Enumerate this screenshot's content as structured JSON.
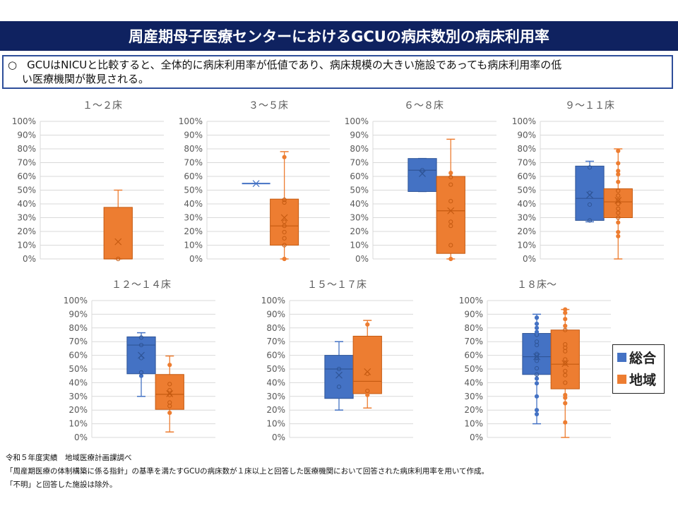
{
  "header": {
    "title": "周産期母子医療センターにおけるGCUの病床数別の病床利用率"
  },
  "note": {
    "bullet": "○",
    "line1": "GCUはNICUと比較すると、全体的に病床利用率が低値であり、病床規模の大きい施設であっても病床利用率の低",
    "line2": "い医療機関が散見される。"
  },
  "legend": {
    "items": [
      {
        "label": "総合",
        "color": "#4472c4"
      },
      {
        "label": "地域",
        "color": "#ed7d31"
      }
    ]
  },
  "footer": {
    "line1": "令和５年度実績　地域医療計画課調べ",
    "line2": "「周産期医療の体制構築に係る指針」の基準を満たすGCUの病床数が１床以上と回答した医療機関において回答された病床利用率を用いて作成。",
    "line3": "「不明」と回答した施設は除外。"
  },
  "chart_data": [
    {
      "type": "box",
      "title": "１～２床",
      "ylim": [
        0,
        100
      ],
      "yticks": [
        "0%",
        "10%",
        "20%",
        "30%",
        "40%",
        "50%",
        "60%",
        "70%",
        "80%",
        "90%",
        "100%"
      ],
      "series": [
        {
          "name": "総合",
          "color": "#4472c4",
          "min": null,
          "q1": null,
          "median": null,
          "q3": null,
          "max": null,
          "mean": null,
          "points": []
        },
        {
          "name": "地域",
          "color": "#ed7d31",
          "min": 0,
          "q1": 0,
          "median": 0,
          "q3": 37.5,
          "max": 50,
          "mean": 12.5,
          "points": [
            0
          ]
        }
      ]
    },
    {
      "type": "box",
      "title": "３～５床",
      "ylim": [
        0,
        100
      ],
      "yticks": [
        "0%",
        "10%",
        "20%",
        "30%",
        "40%",
        "50%",
        "60%",
        "70%",
        "80%",
        "90%",
        "100%"
      ],
      "series": [
        {
          "name": "総合",
          "color": "#4472c4",
          "min": 54.8,
          "q1": 54.8,
          "median": 54.8,
          "q3": 54.8,
          "max": 54.8,
          "mean": 54.8,
          "points": []
        },
        {
          "name": "地域",
          "color": "#ed7d31",
          "min": 0,
          "q1": 10,
          "median": 24,
          "q3": 43.5,
          "max": 78,
          "mean": 30,
          "points": [
            0,
            10,
            15,
            19.5,
            24,
            27,
            41,
            43,
            74
          ]
        }
      ]
    },
    {
      "type": "box",
      "title": "６～８床",
      "ylim": [
        0,
        100
      ],
      "yticks": [
        "0%",
        "10%",
        "20%",
        "30%",
        "40%",
        "50%",
        "60%",
        "70%",
        "80%",
        "90%",
        "100%"
      ],
      "series": [
        {
          "name": "総合",
          "color": "#4472c4",
          "min": 49,
          "q1": 49,
          "median": 64.5,
          "q3": 73,
          "max": 73,
          "mean": 62,
          "points": [
            64.5
          ]
        },
        {
          "name": "地域",
          "color": "#ed7d31",
          "min": 0,
          "q1": 4,
          "median": 35,
          "q3": 60,
          "max": 87,
          "mean": 35,
          "points": [
            0,
            10,
            24,
            27,
            42,
            54,
            59.5,
            62.5
          ]
        }
      ]
    },
    {
      "type": "box",
      "title": "９～１１床",
      "ylim": [
        0,
        100
      ],
      "yticks": [
        "0%",
        "10%",
        "20%",
        "30%",
        "40%",
        "50%",
        "60%",
        "70%",
        "80%",
        "90%",
        "100%"
      ],
      "series": [
        {
          "name": "総合",
          "color": "#4472c4",
          "min": 27,
          "q1": 28,
          "median": 44,
          "q3": 67.5,
          "max": 71,
          "mean": 46.5,
          "points": [
            28,
            39.5,
            48,
            66.5
          ]
        },
        {
          "name": "地域",
          "color": "#ed7d31",
          "min": 0,
          "q1": 30,
          "median": 41.5,
          "q3": 51,
          "max": 80,
          "mean": 42.5,
          "points": [
            16.5,
            19.5,
            26.5,
            30,
            33.5,
            36.5,
            40,
            42.5,
            46,
            49.5,
            56,
            61.5,
            64,
            69.5,
            78.5
          ]
        }
      ]
    },
    {
      "type": "box",
      "title": "１２～１４床",
      "ylim": [
        0,
        100
      ],
      "yticks": [
        "0%",
        "10%",
        "20%",
        "30%",
        "40%",
        "50%",
        "60%",
        "70%",
        "80%",
        "90%",
        "100%"
      ],
      "series": [
        {
          "name": "総合",
          "color": "#4472c4",
          "min": 30,
          "q1": 46.5,
          "median": 67.5,
          "q3": 73.5,
          "max": 76.5,
          "mean": 60,
          "points": [
            45,
            47.5,
            58,
            67.5,
            73
          ]
        },
        {
          "name": "地域",
          "color": "#ed7d31",
          "min": 4,
          "q1": 20.5,
          "median": 31.5,
          "q3": 46,
          "max": 59.5,
          "mean": 32,
          "points": [
            18,
            23,
            25.5,
            31,
            34.5,
            39,
            53
          ]
        }
      ]
    },
    {
      "type": "box",
      "title": "１５～１７床",
      "ylim": [
        0,
        100
      ],
      "yticks": [
        "0%",
        "10%",
        "20%",
        "30%",
        "40%",
        "50%",
        "60%",
        "70%",
        "80%",
        "90%",
        "100%"
      ],
      "series": [
        {
          "name": "総合",
          "color": "#4472c4",
          "min": 20,
          "q1": 28.5,
          "median": 50,
          "q3": 60,
          "max": 70,
          "mean": 45.5,
          "points": [
            37,
            50
          ]
        },
        {
          "name": "地域",
          "color": "#ed7d31",
          "min": 21.5,
          "q1": 32,
          "median": 41,
          "q3": 74,
          "max": 85.5,
          "mean": 48,
          "points": [
            31,
            34,
            46.5,
            82.5
          ]
        }
      ]
    },
    {
      "type": "box",
      "title": "１８床～",
      "ylim": [
        0,
        100
      ],
      "yticks": [
        "0%",
        "10%",
        "20%",
        "30%",
        "40%",
        "50%",
        "60%",
        "70%",
        "80%",
        "90%",
        "100%"
      ],
      "series": [
        {
          "name": "総合",
          "color": "#4472c4",
          "min": 10,
          "q1": 46,
          "median": 59,
          "q3": 76,
          "max": 90,
          "mean": 59,
          "points": [
            17,
            20,
            30,
            39.5,
            43,
            46,
            50.5,
            56,
            58,
            60,
            61,
            67.5,
            70,
            75,
            77,
            80,
            83,
            87.5
          ]
        },
        {
          "name": "地域",
          "color": "#ed7d31",
          "min": 0,
          "q1": 35.5,
          "median": 53.5,
          "q3": 78.5,
          "max": 93.5,
          "mean": 54,
          "points": [
            11,
            25,
            29,
            31,
            40,
            45.5,
            48.5,
            54,
            57,
            63,
            65.5,
            68,
            78.5,
            81.5,
            86.5,
            91,
            93.5
          ]
        }
      ]
    }
  ]
}
